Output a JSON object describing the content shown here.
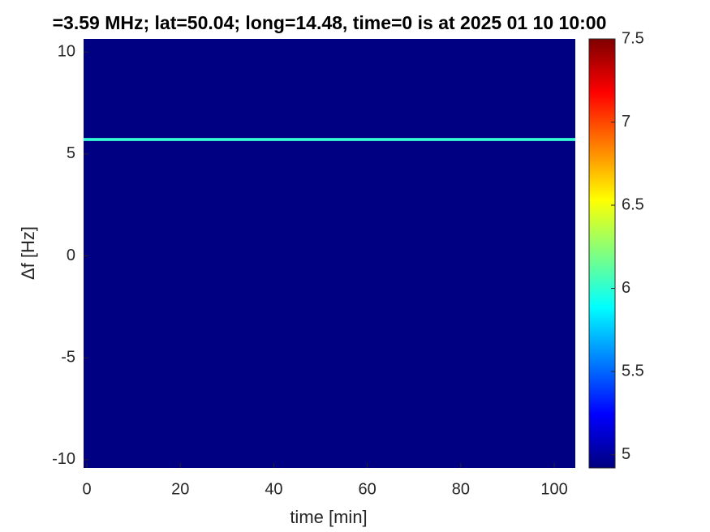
{
  "chart_data": {
    "type": "heatmap",
    "title": "=3.59 MHz;  lat=50.04; long=14.48, time=0 is at 2025 01 10 10:00",
    "xlabel": "time [min]",
    "ylabel": "Δf [Hz]",
    "xlim": [
      -0.7,
      104.5
    ],
    "xticks": [
      0,
      20,
      40,
      60,
      80,
      100
    ],
    "ylim": [
      -10.4,
      10.64
    ],
    "yticks": [
      -10,
      -5,
      0,
      5,
      10
    ],
    "ybins": [
      -10.4,
      5.64,
      5.78,
      10.64
    ],
    "values": [
      4.93,
      6.0,
      4.93
    ],
    "colormap": "jet",
    "clim": [
      4.92,
      7.5
    ],
    "cticks": [
      5,
      5.5,
      6,
      6.5,
      7,
      7.5
    ]
  }
}
